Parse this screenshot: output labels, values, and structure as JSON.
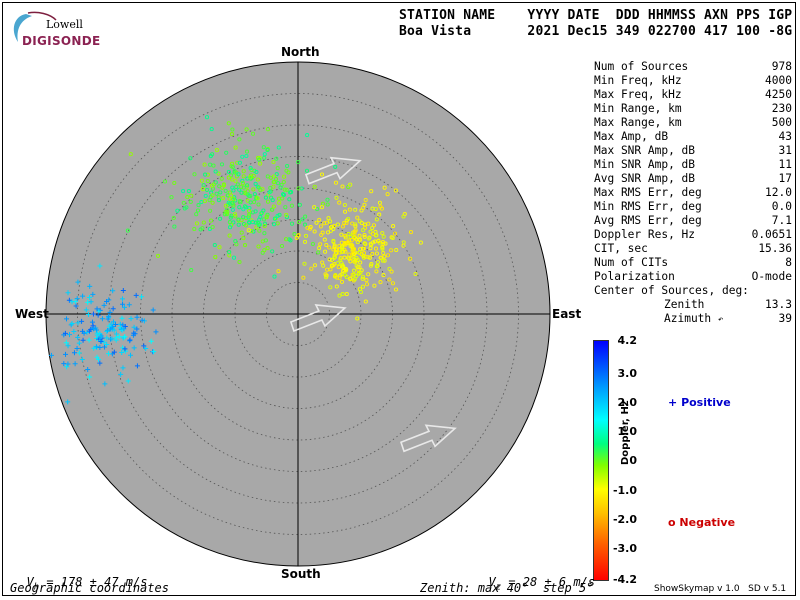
{
  "logo": {
    "top": "Lowell",
    "bottom": "DIGISONDE"
  },
  "header": {
    "line1": "STATION NAME    YYYY DATE  DDD HHMMSS AXN PPS IGP",
    "line2": "Boa Vista       2021 Dec15 349 022700 417 100 -8G"
  },
  "stats": [
    {
      "label": "Num of Sources",
      "value": "978"
    },
    {
      "label": "Min Freq, kHz",
      "value": "4000"
    },
    {
      "label": "Max Freq, kHz",
      "value": "4250"
    },
    {
      "label": "Min Range, km",
      "value": "230"
    },
    {
      "label": "Max Range, km",
      "value": "500"
    },
    {
      "label": "Max Amp, dB",
      "value": "43"
    },
    {
      "label": "Max SNR Amp, dB",
      "value": "31"
    },
    {
      "label": "Min SNR Amp, dB",
      "value": "11"
    },
    {
      "label": "Avg SNR Amp, dB",
      "value": "17"
    },
    {
      "label": "Max RMS Err, deg",
      "value": "12.0"
    },
    {
      "label": "Min RMS Err, deg",
      "value": "0.0"
    },
    {
      "label": "Avg RMS Err, deg",
      "value": "7.1"
    },
    {
      "label": "Doppler Res, Hz",
      "value": "0.0651"
    },
    {
      "label": "CIT, sec",
      "value": "15.36"
    },
    {
      "label": "Num of CITs",
      "value": "8"
    },
    {
      "label": "Polarization",
      "value": "O-mode"
    }
  ],
  "center": {
    "title": "Center of Sources, deg:",
    "zenith_label": "Zenith",
    "zenith_value": "13.3",
    "azimuth_label": "Azimuth",
    "azimuth_value": "39"
  },
  "directions": {
    "north": "North",
    "south": "South",
    "east": "East",
    "west": "West"
  },
  "footer": {
    "vh": "V",
    "vh_sub": "h",
    "vh_rest": " = 178 ± 47 m/s",
    "vz": "V",
    "vz_sub": "z",
    "vz_rest": " = 28 ± 6 m/s",
    "coords": "Geographic coordinates",
    "zenith": "Zenith: max 40°  step 5°",
    "version": "ShowSkymap v 1.0   SD v 5.1"
  },
  "colorbar": {
    "ticks": [
      "4.2",
      "3.0",
      "2.0",
      "1.0",
      "0",
      "-1.0",
      "-2.0",
      "-3.0",
      "-4.2"
    ],
    "label": "Doppler, Hz",
    "positive": "Positive",
    "negative": "Negative",
    "positive_color": "#0000cc",
    "negative_color": "#cc0000"
  },
  "chart_data": {
    "type": "scatter",
    "coordinate_system": "polar skymap (geographic)",
    "zenith_max_deg": 40,
    "zenith_step_deg": 5,
    "doppler_range_hz": [
      -4.2,
      4.2
    ],
    "clusters": [
      {
        "center_zenith_deg": 20.5,
        "center_azimuth_deg": 334,
        "spread_deg": 4.5,
        "count": 330,
        "doppler_hz": [
          -0.2,
          0.8
        ],
        "symbol": "o"
      },
      {
        "center_zenith_deg": 13.3,
        "center_azimuth_deg": 39,
        "spread_deg": 3.5,
        "count": 300,
        "doppler_hz": [
          -1.3,
          -0.6
        ],
        "symbol": "o"
      },
      {
        "center_zenith_deg": 31,
        "center_azimuth_deg": 265,
        "spread_deg": 3.2,
        "count": 160,
        "doppler_hz": [
          1.4,
          3.2
        ],
        "symbol": "+"
      }
    ],
    "arrows": [
      {
        "zenith_deg": 24,
        "azimuth_deg": 13,
        "label": ""
      },
      {
        "zenith_deg": 3,
        "azimuth_deg": 90,
        "label": ""
      },
      {
        "zenith_deg": 28,
        "azimuth_deg": 133,
        "label": ""
      }
    ]
  }
}
